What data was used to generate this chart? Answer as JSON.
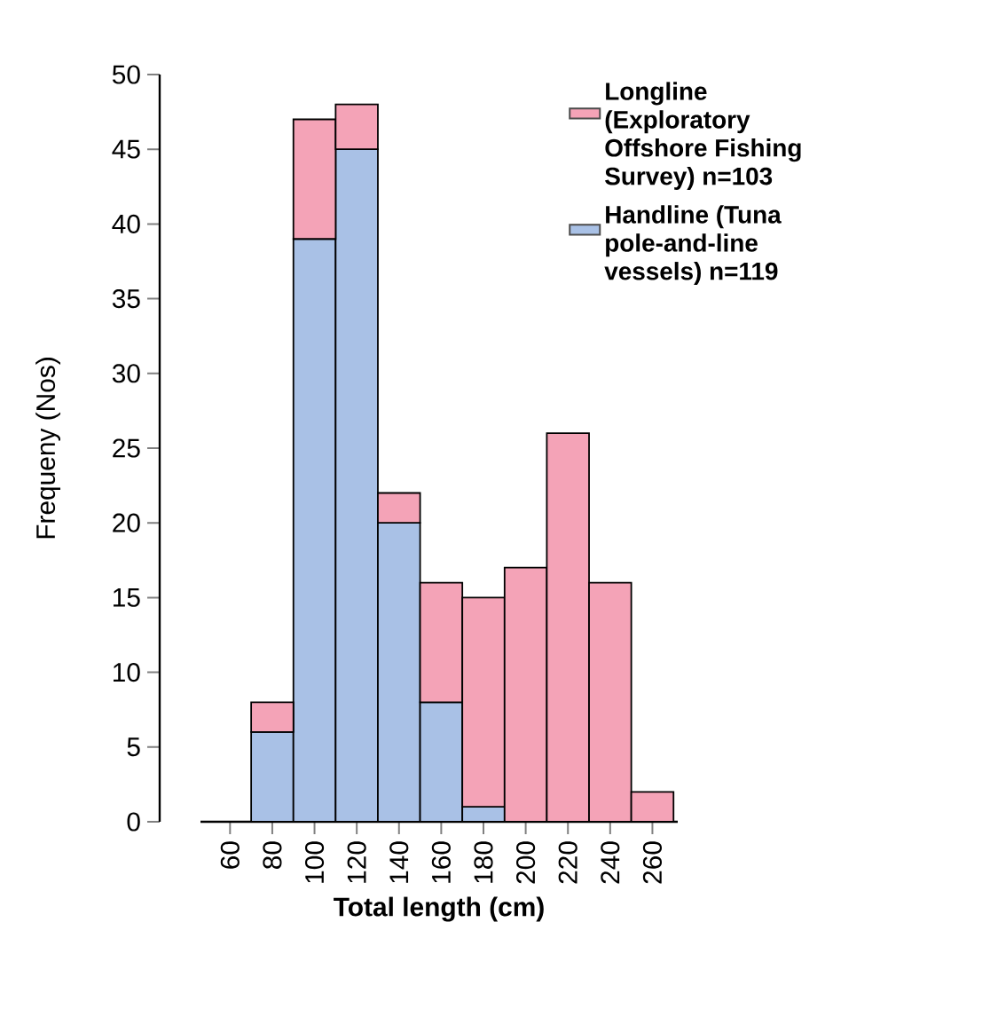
{
  "chart_data": {
    "type": "bar",
    "xlabel": "Total length (cm)",
    "ylabel": "Frequeny (Nos)",
    "x": [
      80,
      100,
      120,
      140,
      160,
      180,
      200,
      220,
      240,
      260
    ],
    "series": [
      {
        "name": "Handline (Tuna pole-and-line vessels) n=119",
        "color": "#a9c1e6",
        "values": [
          6,
          39,
          45,
          20,
          8,
          1,
          0,
          0,
          0,
          0
        ]
      },
      {
        "name": "Longline (Exploratory Offshore Fishing Survey) n=103",
        "color": "#f4a3b7",
        "values": [
          2,
          8,
          3,
          2,
          8,
          14,
          17,
          26,
          16,
          2
        ]
      }
    ],
    "stacked": true,
    "xlim": [
      46,
      272
    ],
    "xticks": [
      60,
      80,
      100,
      120,
      140,
      160,
      180,
      200,
      220,
      240,
      260
    ],
    "ylim": [
      0,
      50
    ],
    "yticks": [
      0,
      5,
      10,
      15,
      20,
      25,
      30,
      35,
      40,
      45,
      50
    ],
    "legend": "top right"
  }
}
